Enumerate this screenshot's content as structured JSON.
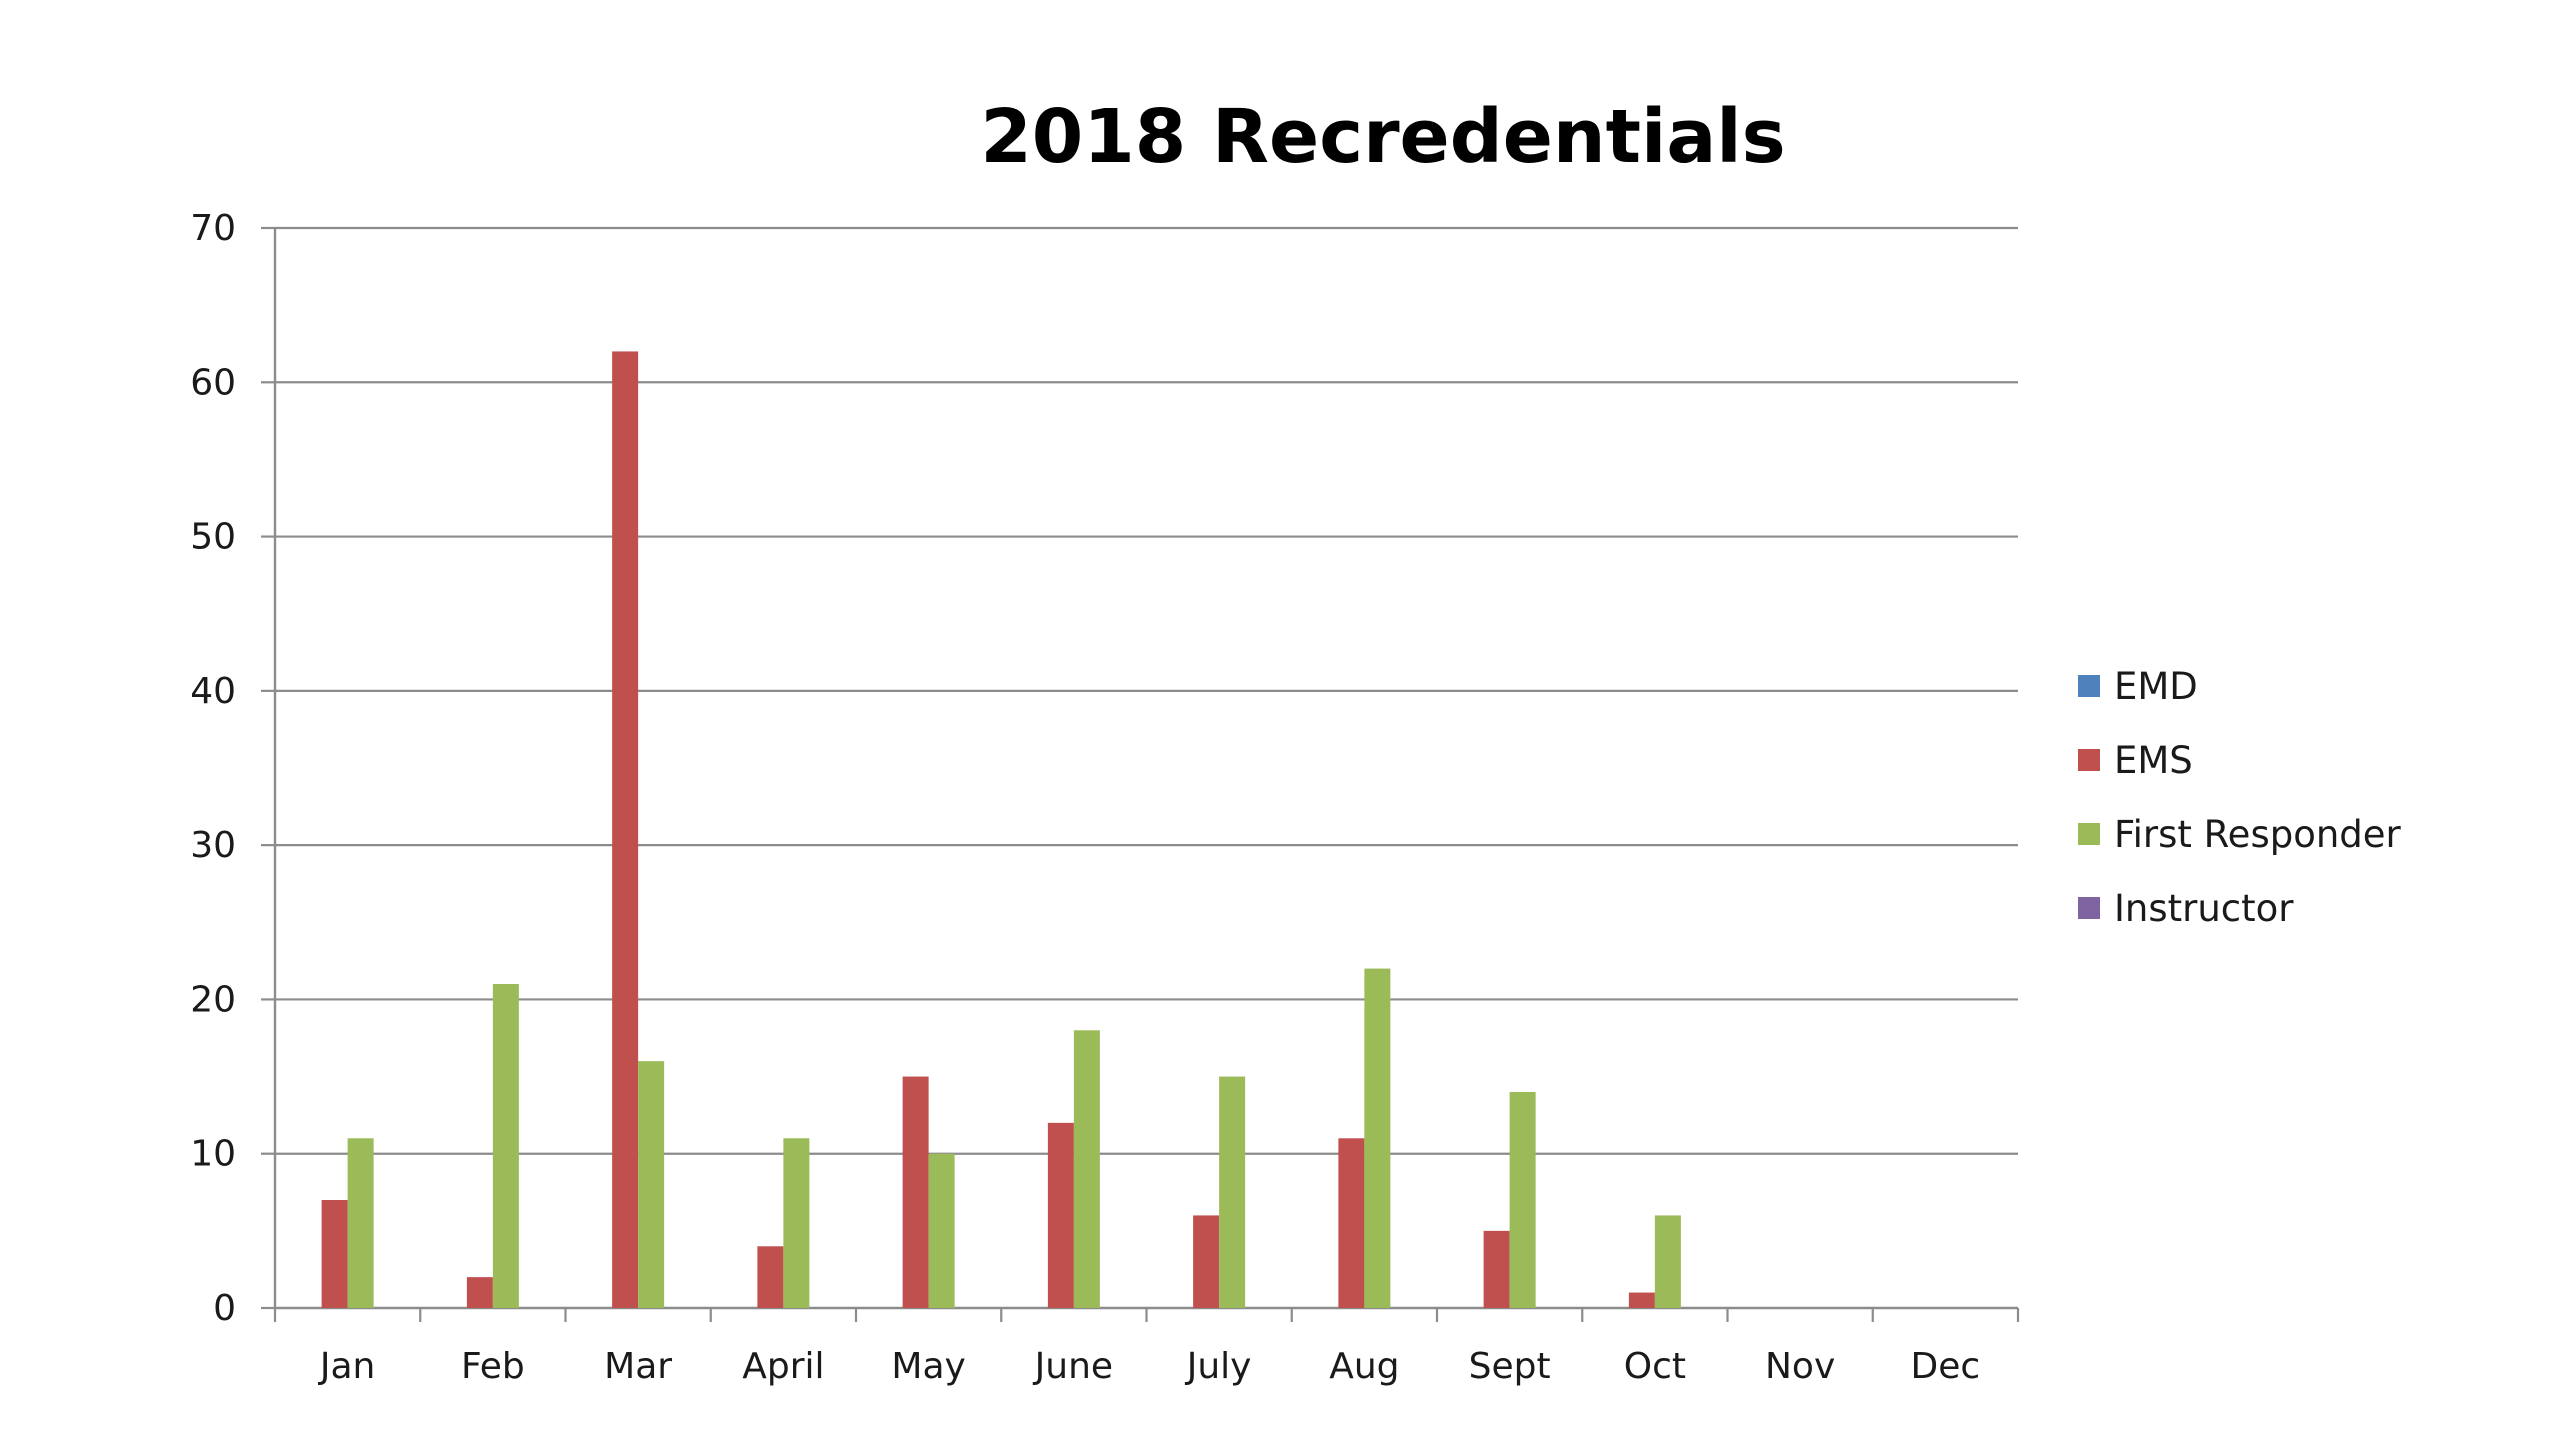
{
  "chart_data": {
    "type": "bar",
    "title": "2018 Recredentials",
    "categories": [
      "Jan",
      "Feb",
      "Mar",
      "April",
      "May",
      "June",
      "July",
      "Aug",
      "Sept",
      "Oct",
      "Nov",
      "Dec"
    ],
    "series": [
      {
        "name": "EMD",
        "color": "#4f81bd",
        "values": [
          0,
          0,
          0,
          0,
          0,
          0,
          0,
          0,
          0,
          0,
          0,
          0
        ]
      },
      {
        "name": "EMS",
        "color": "#c0504d",
        "values": [
          7,
          2,
          62,
          4,
          15,
          12,
          6,
          11,
          5,
          1,
          0,
          0
        ]
      },
      {
        "name": "First Responder",
        "color": "#9bbb59",
        "values": [
          11,
          21,
          16,
          11,
          10,
          18,
          15,
          22,
          14,
          6,
          0,
          0
        ]
      },
      {
        "name": "Instructor",
        "color": "#8064a2",
        "values": [
          0,
          0,
          0,
          0,
          0,
          0,
          0,
          0,
          0,
          0,
          0,
          0
        ]
      }
    ],
    "ylim": [
      0,
      70
    ],
    "yticks": [
      0,
      10,
      20,
      30,
      40,
      50,
      60,
      70
    ],
    "xlabel": "",
    "ylabel": "",
    "grid": true,
    "legend": "right"
  }
}
